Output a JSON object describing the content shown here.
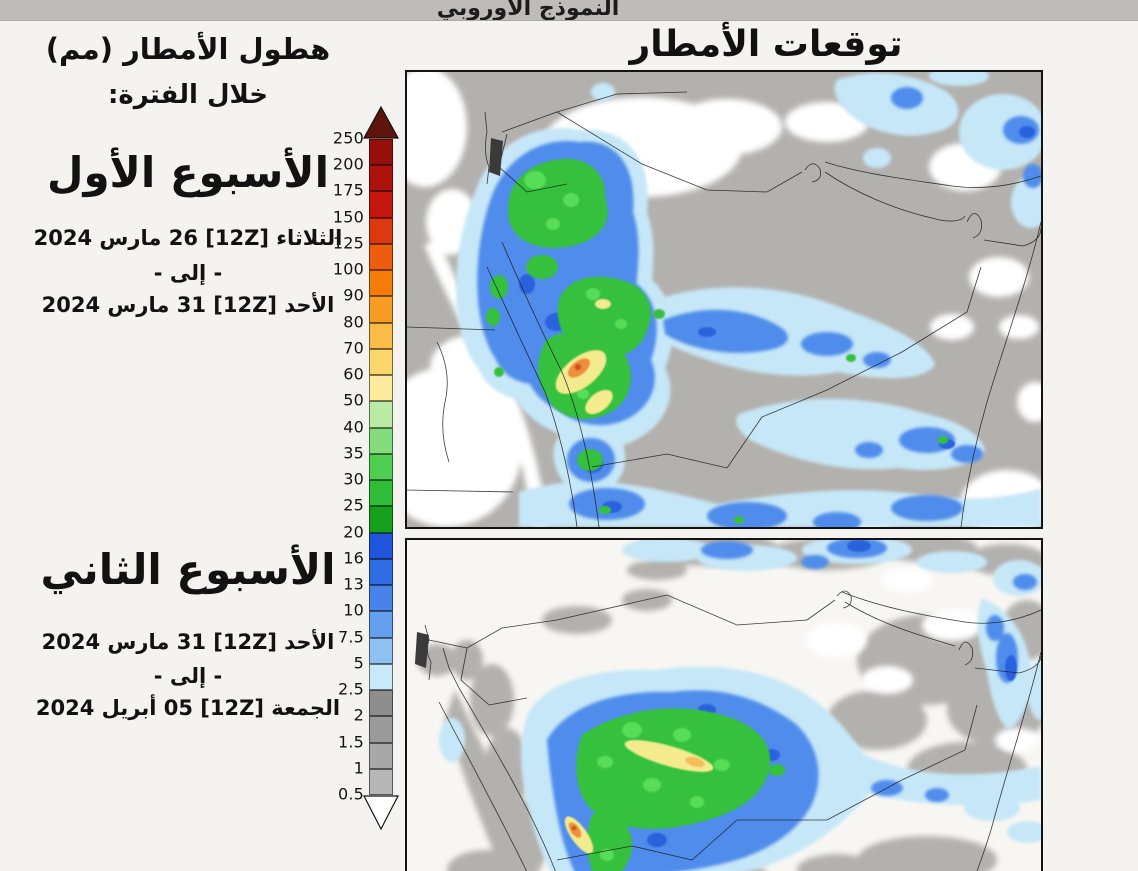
{
  "top_bar": {
    "label": "النموذج الأوروبي",
    "bg": "#bdbcb9"
  },
  "map_title": "توقعات الأمطار",
  "sidebar": {
    "heading_line1": "هطول الأمطار (مم)",
    "heading_line2": "خلال الفترة:",
    "week1": {
      "title": "الأسبوع الأول",
      "date_from": "الثلاثاء [12Z] 26 مارس 2024",
      "to_separator": "- إلى -",
      "date_to": "الأحد [12Z] 31 مارس 2024"
    },
    "week2": {
      "title": "الأسبوع الثاني",
      "date_from": "الأحد [12Z] 31 مارس 2024",
      "to_separator": "- إلى -",
      "date_to": "الجمعة [12Z] 05 أبريل 2024"
    }
  },
  "legend": {
    "unit": "مم",
    "boundary_values": [
      "250",
      "200",
      "175",
      "150",
      "125",
      "100",
      "90",
      "80",
      "70",
      "60",
      "50",
      "40",
      "35",
      "30",
      "25",
      "20",
      "16",
      "13",
      "10",
      "7.5",
      "5",
      "2.5",
      "2",
      "1.5",
      "1",
      "0.5"
    ],
    "band_colors_top_to_bottom": [
      "#970f0b",
      "#ad120c",
      "#c4160e",
      "#dc3911",
      "#ee5d0e",
      "#f67c0a",
      "#f99c26",
      "#fbbc47",
      "#fdd76c",
      "#feeb9d",
      "#b9eba5",
      "#83dd7c",
      "#4ecf52",
      "#2dbd37",
      "#14a01c",
      "#1f55dd",
      "#2f6ce4",
      "#4684ea",
      "#649ff0",
      "#8fc1f2",
      "#c8e9f8",
      "#8e8e8e",
      "#9b9b9b",
      "#a8a8a8",
      "#b7b7b7"
    ],
    "overflow_arrow_color": "#5e150c",
    "underflow_arrow_color": "#ffffff"
  },
  "map_colors": {
    "dry_gray": "#b3b1ae",
    "no_rain_white": "#ffffff",
    "rain_light_cyan": "#c6e7f7",
    "rain_blue": "#4f8ceb",
    "rain_dark_blue": "#2a62dd",
    "rain_green": "#36c13c",
    "rain_bright_green": "#58dd58",
    "rain_yellow": "#f3eb8d",
    "rain_orange": "#ef8f3a",
    "rain_red": "#cc531f"
  }
}
